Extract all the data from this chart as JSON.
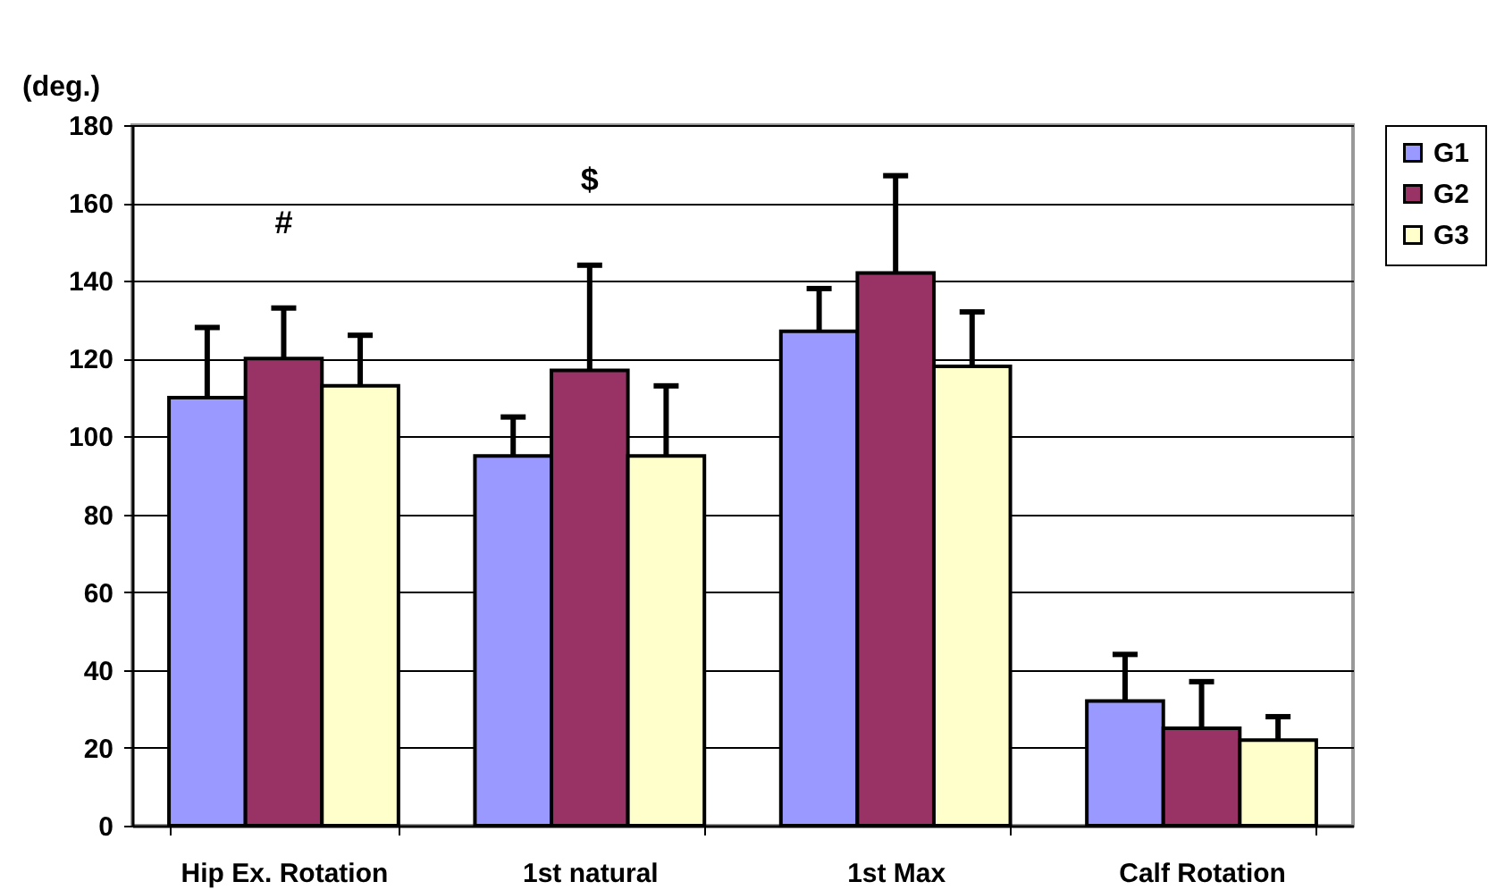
{
  "chart_data": {
    "type": "bar",
    "ylabel": "(deg.)",
    "categories": [
      "Hip Ex. Rotation",
      "1st natural",
      "1st Max",
      "Calf Rotation"
    ],
    "series": [
      {
        "name": "G1",
        "color": "#9999ff",
        "values": [
          110,
          95,
          127,
          32
        ],
        "errors": [
          [
            110,
            128
          ],
          [
            95,
            105
          ],
          [
            127,
            138
          ],
          [
            32,
            44
          ]
        ]
      },
      {
        "name": "G2",
        "color": "#993366",
        "values": [
          120,
          117,
          142,
          25
        ],
        "errors": [
          [
            120,
            133
          ],
          [
            117,
            144
          ],
          [
            142,
            167
          ],
          [
            25,
            37
          ]
        ]
      },
      {
        "name": "G3",
        "color": "#ffffcc",
        "values": [
          113,
          95,
          118,
          22
        ],
        "errors": [
          [
            113,
            126
          ],
          [
            95,
            113
          ],
          [
            118,
            132
          ],
          [
            22,
            28
          ]
        ]
      }
    ],
    "ylim": [
      0,
      180
    ],
    "yticks": [
      0,
      20,
      40,
      60,
      80,
      100,
      120,
      140,
      160,
      180
    ],
    "grid": "y",
    "legend": "right",
    "annotations": [
      "#",
      "$"
    ]
  }
}
